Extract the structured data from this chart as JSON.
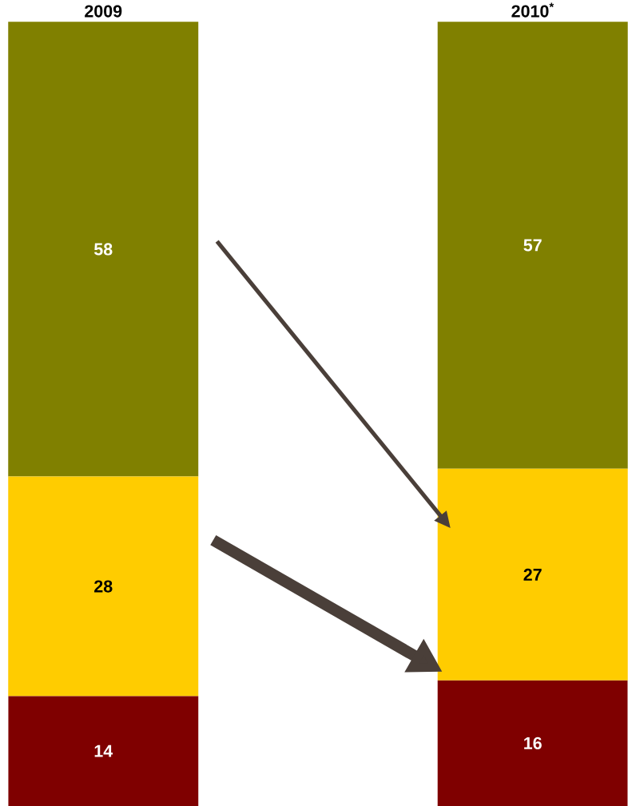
{
  "chart_data": {
    "type": "bar",
    "stacked": true,
    "data_labels": true,
    "categories": [
      "2009",
      "2010$^{*}$"
    ],
    "series": [
      {
        "color": "#7f0000",
        "values": [
          14,
          16
        ]
      },
      {
        "color": "#ffcc00",
        "values": [
          28,
          27
        ]
      },
      {
        "color": "#808000",
        "values": [
          58,
          57
        ]
      }
    ]
  }
}
